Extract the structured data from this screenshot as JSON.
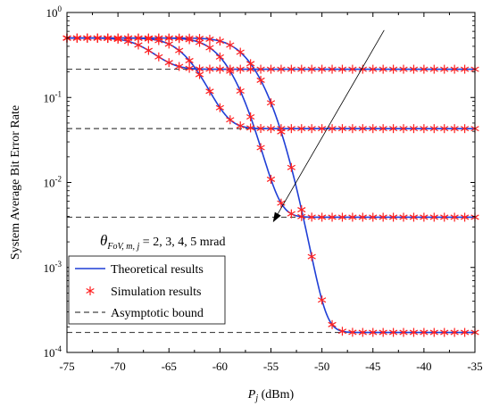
{
  "chart_data": {
    "type": "line",
    "title": "",
    "xlabel": "P_j (dBm)",
    "xlabel_main": "P",
    "xlabel_sub": "j",
    "xlabel_unit": " (dBm)",
    "ylabel": "System Average Bit Error Rate",
    "xlim": [
      -75,
      -35
    ],
    "ylim": [
      0.0001,
      1
    ],
    "yscale": "log",
    "xticks": [
      -75,
      -70,
      -65,
      -60,
      -55,
      -50,
      -45,
      -40,
      -35
    ],
    "xtick_labels": [
      "-75",
      "-70",
      "-65",
      "-60",
      "-55",
      "-50",
      "-45",
      "-40",
      "-35"
    ],
    "yticks": [
      0.0001,
      0.001,
      0.01,
      0.1,
      1
    ],
    "ytick_labels": [
      {
        "base": "10",
        "exp": "-4"
      },
      {
        "base": "10",
        "exp": "-3"
      },
      {
        "base": "10",
        "exp": "-2"
      },
      {
        "base": "10",
        "exp": "-1"
      },
      {
        "base": "10",
        "exp": "0"
      }
    ],
    "grid": false,
    "legend_position": "bottom-left",
    "legend": [
      {
        "label": "Theoretical results",
        "style": "line",
        "color": "#1f3fd6"
      },
      {
        "label": "Simulation results",
        "style": "marker",
        "color": "#ff2020"
      },
      {
        "label": "Asymptotic bound",
        "style": "dashed",
        "color": "#444444"
      }
    ],
    "series": [
      {
        "fov": 2,
        "floor": 0.000172,
        "midpoint": -57.0,
        "scale": 3.0,
        "bound": 0.000172
      },
      {
        "fov": 3,
        "floor": 0.0039,
        "midpoint": -59.5,
        "scale": 2.9,
        "bound": 0.0039
      },
      {
        "fov": 4,
        "floor": 0.043,
        "midpoint": -63.0,
        "scale": 2.9,
        "bound": 0.043
      },
      {
        "fov": 5,
        "floor": 0.215,
        "midpoint": -67.0,
        "scale": 2.7,
        "bound": 0.215
      }
    ],
    "x_samples": [
      -75,
      -74,
      -73,
      -72,
      -71,
      -70,
      -69,
      -68,
      -67,
      -66,
      -65,
      -64,
      -63,
      -62,
      -61,
      -60,
      -59,
      -58,
      -57,
      -56,
      -55,
      -54,
      -53,
      -52,
      -51,
      -50,
      -49,
      -48,
      -47,
      -46,
      -45,
      -44,
      -43,
      -42,
      -41,
      -40,
      -39,
      -38,
      -37,
      -36,
      -35
    ],
    "bound_xrange": [
      -75,
      -35
    ],
    "annotation": {
      "text": "θ_FoV, m, j = 2, 3, 4, 5 mrad",
      "theta": "θ",
      "sub": "FoV, m, j",
      "rest": " = 2, 3, 4, 5 mrad",
      "arrow_from": {
        "x": -43.9,
        "y": 0.62
      },
      "arrow_to": {
        "x": -54.8,
        "y": 0.0034
      }
    }
  }
}
